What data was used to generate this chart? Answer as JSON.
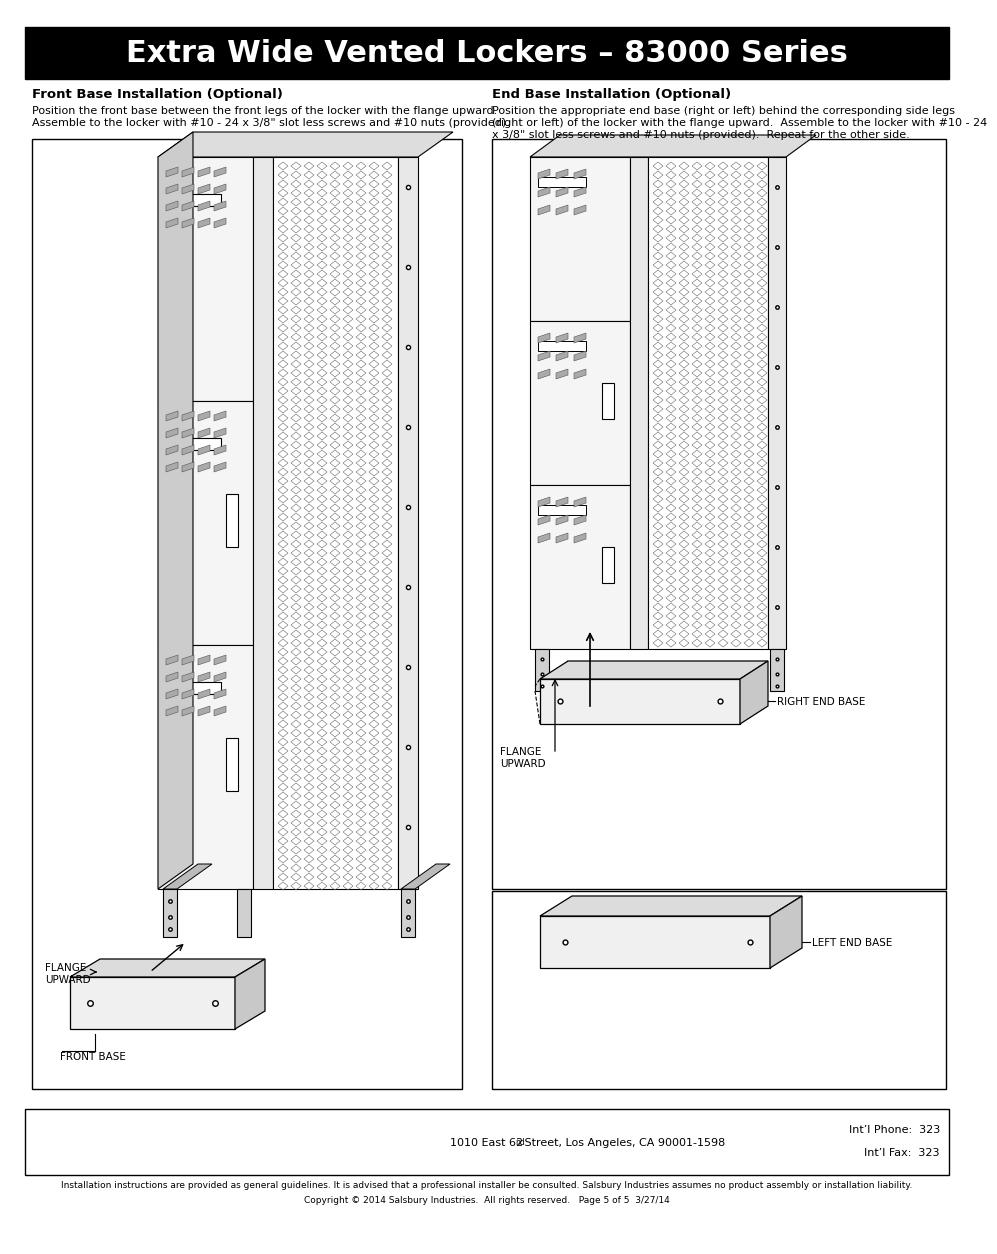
{
  "title": "Extra Wide Vented Lockers – 83000 Series",
  "title_bg": "#000000",
  "title_fg": "#ffffff",
  "page_bg": "#ffffff",
  "left_section_title": "Front Base Installation (Optional)",
  "left_section_body1": "Position the front base between the front legs of the locker with the flange upward.",
  "left_section_body2": "Assemble to the locker with #10 - 24 x 3/8\" slot less screws and #10 nuts (provided).",
  "right_section_title": "End Base Installation (Optional)",
  "right_section_body1": "Position the appropriate end base (right or left) behind the corresponding side legs",
  "right_section_body2": "(right or left) of the locker with the flange upward.  Assemble to the locker with #10 - 24",
  "right_section_body3": "x 3/8\" slot less screws and #10 nuts (provided).  Repeat for the other side.",
  "footer_address": "1010 East 62",
  "footer_address2": "nd",
  "footer_address3": " Street, Los Angeles, CA 90001-1598",
  "footer_phone": "Int’l Phone:  323",
  "footer_fax": "Int’l Fax:  323",
  "footer_disclaimer": "Installation instructions are provided as general guidelines. It is advised that a professional installer be consulted. Salsbury Industries assumes no product assembly or installation liability.",
  "footer_copyright": "Copyright © 2014 Salsbury Industries.  All rights reserved.   Page 5 of 5  3/27/14",
  "label_flange_upward_left": "FLANGE\nUPWARD",
  "label_front_base": "FRONT BASE",
  "label_flange_upward_right": "FLANGE\nUPWARD",
  "label_right_end_base": "RIGHT END BASE",
  "label_left_end_base": "LEFT END BASE"
}
